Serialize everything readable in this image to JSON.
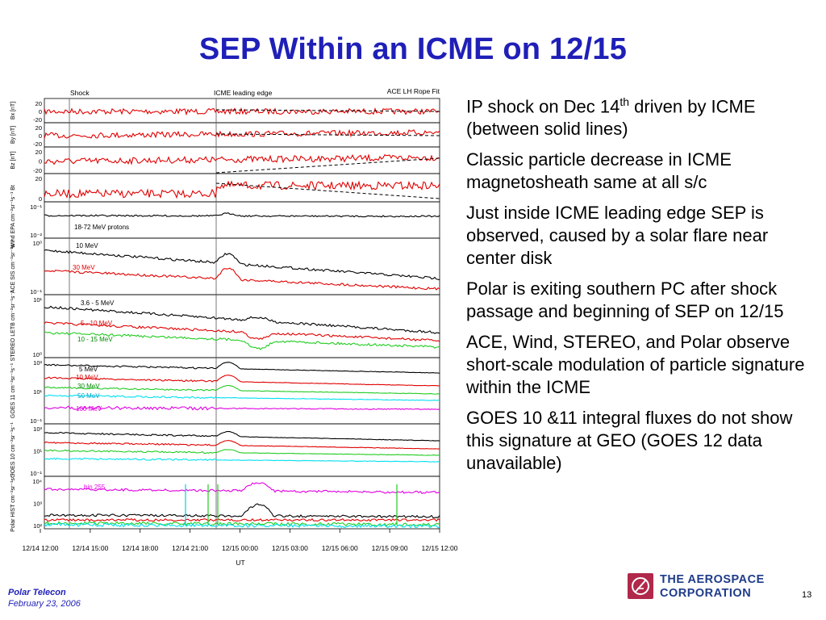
{
  "slide": {
    "title": "SEP Within an ICME on 12/15",
    "page_number": "13"
  },
  "figure": {
    "top_labels": {
      "shock": "Shock",
      "icme_leading_edge": "ICME leading edge",
      "rope_fit": "ACE LH Rope Fit"
    },
    "x_axis_label": "UT",
    "panels": [
      {
        "name": "Bx",
        "ylabel": "Bx [nT]",
        "ticks": [
          "20",
          "0",
          "-20"
        ]
      },
      {
        "name": "By",
        "ylabel": "By [nT]",
        "ticks": [
          "20",
          "0",
          "-20"
        ]
      },
      {
        "name": "Bz",
        "ylabel": "Bz [nT]",
        "ticks": [
          "20",
          "0",
          "-20"
        ]
      },
      {
        "name": "Bt",
        "ylabel": "Bt",
        "ticks": [
          "20",
          "0"
        ]
      },
      {
        "name": "Wind EPA",
        "ylabel": "Wind EPA cm⁻²sr⁻¹s⁻¹",
        "ticks": [
          "10⁻¹",
          "10⁻²"
        ]
      },
      {
        "name": "ACE SIS",
        "ylabel": "ACE SIS cm⁻²sr⁻¹s⁻¹",
        "ticks": [
          "10⁰",
          "10⁻¹"
        ]
      },
      {
        "name": "STEREO LETB",
        "ylabel": "STEREO LETB cm⁻²sr⁻¹s⁻¹",
        "ticks": [
          "10¹",
          "10⁰"
        ]
      },
      {
        "name": "GOES 11",
        "ylabel": "GOES 11 cm⁻²sr⁻¹s⁻¹",
        "ticks": [
          "10³",
          "10¹",
          "10⁻¹"
        ]
      },
      {
        "name": "GOES 10",
        "ylabel": "GOES 10 cm⁻²sr⁻¹s⁻¹",
        "ticks": [
          "10³",
          "10¹",
          "10⁻¹"
        ]
      },
      {
        "name": "Polar HIST",
        "ylabel": "Polar HIST cm⁻²sr⁻¹s⁻¹",
        "ticks": [
          "10⁴",
          "10³",
          "10²"
        ]
      }
    ],
    "series_labels": {
      "wind": "18-72 MeV protons",
      "ace_10": "10 MeV",
      "ace_30": "30 MeV",
      "stereo_1": "3.6 - 5 MeV",
      "stereo_2": "5 - 10 MeV",
      "stereo_3": "10 - 15 MeV",
      "goes11_5": "5 MeV",
      "goes11_10": "10 MeV",
      "goes11_30": "30 MeV",
      "goes11_50": "50 MeV",
      "goes11_100": "100 MeV",
      "polar": "bin 255"
    },
    "time_ticks": [
      "12/14 12:00",
      "12/14 15:00",
      "12/14 18:00",
      "12/14 21:00",
      "12/15 00:00",
      "12/15 03:00",
      "12/15 06:00",
      "12/15 09:00",
      "12/15 12:00"
    ],
    "colors": {
      "black": "#000000",
      "red": "#e00000",
      "green": "#22cc22",
      "cyan": "#00e0f0",
      "magenta": "#e000e0",
      "blue": "#1f1fb8"
    }
  },
  "bullets": [
    {
      "text_before": "IP shock on Dec 14",
      "superscript": "th",
      "text_after": " driven by ICME (between solid lines)"
    },
    {
      "text": "Classic particle decrease in ICME magnetosheath same at all s/c"
    },
    {
      "text": "Just inside ICME leading edge SEP is observed, caused by a solar flare near center disk"
    },
    {
      "text": "Polar is exiting southern PC after shock passage and beginning of SEP on 12/15"
    },
    {
      "text": "ACE, Wind, STEREO, and Polar observe short-scale modulation of particle signature within the ICME"
    },
    {
      "text": "GOES 10 &11 integral fluxes do not show this signature at GEO (GOES 12 data unavailable)"
    }
  ],
  "footer": {
    "org": "Polar Telecon",
    "date": "February 23, 2006",
    "logo_line1": "THE AEROSPACE",
    "logo_line2": "CORPORATION",
    "logo_icon": "aerospace-logo-icon"
  }
}
